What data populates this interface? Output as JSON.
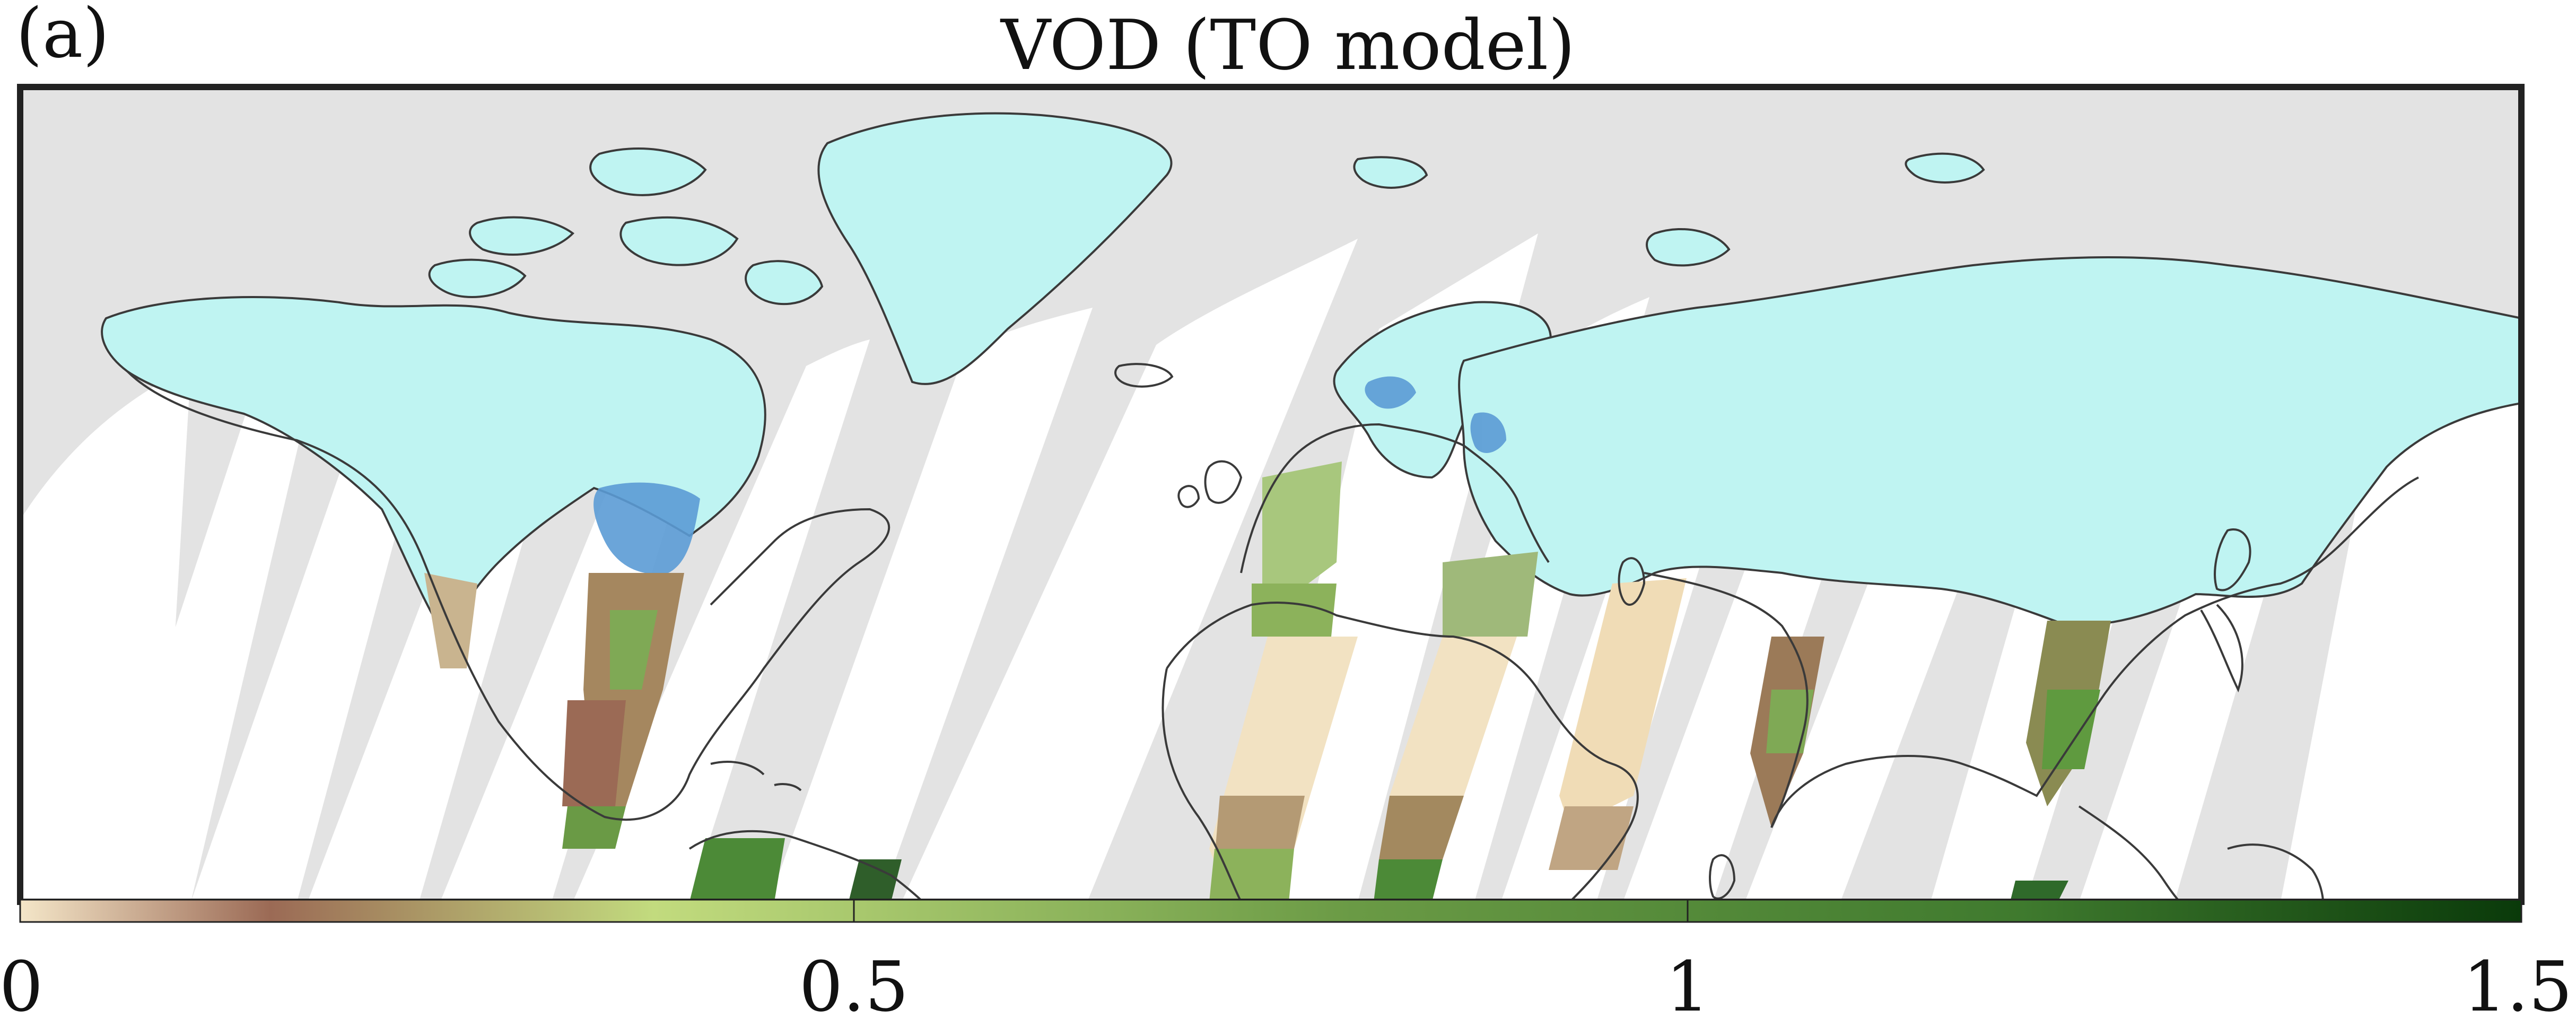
{
  "figure": {
    "panel_label": "(a)",
    "title": "VOD (TO model)"
  },
  "colorbar": {
    "min": 0,
    "max": 1.5,
    "ticks": [
      {
        "value": 0,
        "label": "0"
      },
      {
        "value": 0.5,
        "label": "0.5"
      },
      {
        "value": 1,
        "label": "1"
      },
      {
        "value": 1.5,
        "label": "1.5"
      }
    ],
    "gradient": [
      {
        "value": 0.0,
        "color": "#f4e6c8"
      },
      {
        "value": 0.15,
        "color": "#9b6a55"
      },
      {
        "value": 0.38,
        "color": "#c2db7e"
      },
      {
        "value": 0.8,
        "color": "#6a9a45"
      },
      {
        "value": 1.2,
        "color": "#3f7a2e"
      },
      {
        "value": 1.5,
        "color": "#0a3a0a"
      }
    ]
  },
  "colors": {
    "no_data_gray": "#e3e3e3",
    "swath_gap_white": "#ffffff",
    "frozen_cyan": "#bff4f2",
    "water_blue": "#5b9bd5",
    "desert_tan": "#f2e2c2",
    "coastline": "#3a3a3a"
  },
  "icons": {
    "map": "world-map-equirectangular"
  }
}
